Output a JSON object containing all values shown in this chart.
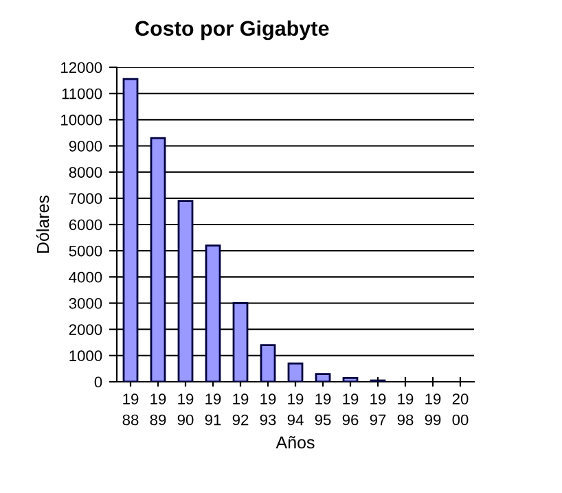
{
  "chart_data": {
    "type": "bar",
    "title": "Costo por Gigabyte",
    "xlabel": "Años",
    "ylabel": "Dólares",
    "categories": [
      "19\n88",
      "19\n89",
      "19\n90",
      "19\n91",
      "19\n92",
      "19\n93",
      "19\n94",
      "19\n95",
      "19\n96",
      "19\n97",
      "19\n98",
      "19\n99",
      "20\n00"
    ],
    "values": [
      11550,
      9300,
      6900,
      5200,
      3000,
      1400,
      700,
      300,
      150,
      50,
      0,
      0,
      0
    ],
    "color": "#9999ff",
    "ylim": [
      0,
      12000
    ],
    "yticks": [
      0,
      1000,
      2000,
      3000,
      4000,
      5000,
      6000,
      7000,
      8000,
      9000,
      10000,
      11000,
      12000
    ],
    "grid": "y",
    "legend": false
  }
}
